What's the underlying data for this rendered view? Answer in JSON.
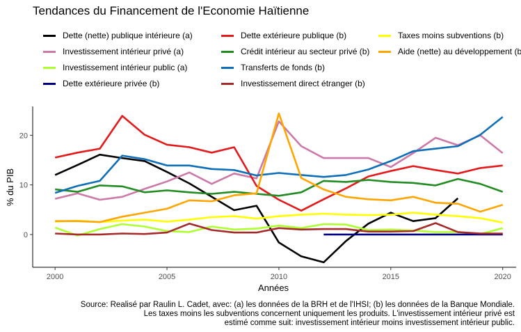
{
  "title": "Tendances du Financement de l'Economie Haïtienne",
  "source_lines": [
    "Source: Realisé par Raulin L. Cadet, avec: (a) les données de la BRH et de l'IHSI; (b) les données de la Banque Mondiale.",
    "Les taxes moins les subventions concernent uniquement les produits. L'investissement intérieur privé est",
    "estimé comme suit: investissement intérieur moins investissement intérieur public."
  ],
  "chart_data": {
    "type": "line",
    "title": "Tendances du Financement de l'Economie Haïtienne",
    "xlabel": "Années",
    "ylabel": "% du PIB",
    "xlim": [
      1999.0,
      2020.6
    ],
    "ylim": [
      -6.6,
      25.8
    ],
    "x_ticks": [
      2000,
      2005,
      2010,
      2015,
      2020
    ],
    "y_ticks": [
      0,
      10,
      20
    ],
    "grid": false,
    "legend_position": "top",
    "series": [
      {
        "name": "Dette (nette) publique intérieure (a)",
        "color": "#000000",
        "x": [
          2000,
          2001,
          2002,
          2003,
          2004,
          2005,
          2006,
          2007,
          2008,
          2009,
          2010,
          2011,
          2012,
          2013,
          2014,
          2015,
          2016,
          2017,
          2018
        ],
        "values": [
          12.0,
          14.0,
          16.1,
          15.4,
          14.8,
          12.6,
          10.3,
          7.6,
          4.9,
          5.8,
          -1.6,
          -4.4,
          -5.6,
          -1.3,
          2.2,
          4.4,
          2.7,
          3.3,
          7.3
        ]
      },
      {
        "name": "Investissement intérieur privé (a)",
        "color": "#cc79a7",
        "x": [
          2000,
          2001,
          2002,
          2003,
          2004,
          2005,
          2006,
          2007,
          2008,
          2009,
          2010,
          2011,
          2012,
          2013,
          2014,
          2015,
          2016,
          2017,
          2018,
          2019,
          2020
        ],
        "values": [
          7.2,
          8.3,
          7.0,
          7.6,
          9.2,
          10.7,
          12.5,
          10.2,
          12.3,
          11.3,
          22.8,
          17.8,
          15.4,
          15.4,
          15.4,
          13.6,
          16.4,
          19.5,
          18.0,
          20.0,
          16.4
        ]
      },
      {
        "name": "Investissement intérieur public (a)",
        "color": "#adff2f",
        "x": [
          2000,
          2001,
          2002,
          2003,
          2004,
          2005,
          2006,
          2007,
          2008,
          2009,
          2010,
          2011,
          2012,
          2013,
          2014,
          2015,
          2016,
          2017,
          2018,
          2019,
          2020
        ],
        "values": [
          1.4,
          -0.2,
          1.1,
          2.1,
          1.6,
          0.7,
          0.5,
          1.6,
          1.0,
          1.2,
          1.8,
          1.3,
          2.1,
          2.0,
          0.9,
          1.0,
          0.8,
          0.5,
          0.5,
          0.1,
          1.3
        ]
      },
      {
        "name": "Dette extérieure privée (b)",
        "color": "#000080",
        "x": [
          2012,
          2013,
          2014,
          2015,
          2016,
          2017,
          2018,
          2019,
          2020
        ],
        "values": [
          0.0,
          0.0,
          0.0,
          0.0,
          0.0,
          0.0,
          0.0,
          0.0,
          0.0
        ]
      },
      {
        "name": "Dette extérieure publique (b)",
        "color": "#e31a1c",
        "x": [
          2000,
          2001,
          2002,
          2003,
          2004,
          2005,
          2006,
          2007,
          2008,
          2009,
          2010,
          2011,
          2012,
          2013,
          2014,
          2015,
          2016,
          2017,
          2018,
          2019,
          2020
        ],
        "values": [
          15.5,
          16.5,
          17.3,
          23.9,
          20.1,
          18.1,
          17.6,
          16.5,
          17.6,
          9.8,
          7.0,
          4.8,
          7.1,
          9.3,
          11.7,
          12.8,
          13.8,
          13.0,
          12.3,
          13.4,
          13.9
        ]
      },
      {
        "name": "Crédit intérieur au secteur privé (b)",
        "color": "#228b22",
        "x": [
          2000,
          2001,
          2002,
          2003,
          2004,
          2005,
          2006,
          2007,
          2008,
          2009,
          2010,
          2011,
          2012,
          2013,
          2014,
          2015,
          2016,
          2017,
          2018,
          2019,
          2020
        ],
        "values": [
          9.1,
          8.6,
          9.9,
          9.7,
          8.5,
          8.9,
          8.5,
          8.2,
          8.6,
          8.2,
          7.8,
          8.5,
          10.8,
          10.6,
          11.0,
          10.6,
          10.4,
          9.9,
          11.2,
          10.2,
          8.6
        ]
      },
      {
        "name": "Transferts de fonds (b)",
        "color": "#0e6eb8",
        "x": [
          2000,
          2001,
          2002,
          2003,
          2004,
          2005,
          2006,
          2007,
          2008,
          2009,
          2010,
          2011,
          2012,
          2013,
          2014,
          2015,
          2016,
          2017,
          2018,
          2019,
          2020
        ],
        "values": [
          8.4,
          9.8,
          10.8,
          15.9,
          15.2,
          13.9,
          13.9,
          13.2,
          13.0,
          11.9,
          12.4,
          12.0,
          11.6,
          12.0,
          13.1,
          14.8,
          16.8,
          17.3,
          17.8,
          20.1,
          23.7
        ]
      },
      {
        "name": "Investissement direct étranger (b)",
        "color": "#a52a2a",
        "x": [
          2000,
          2001,
          2002,
          2003,
          2004,
          2005,
          2006,
          2007,
          2008,
          2009,
          2010,
          2011,
          2012,
          2013,
          2014,
          2015,
          2016,
          2017,
          2018,
          2019,
          2020
        ],
        "values": [
          0.2,
          0.0,
          0.0,
          0.2,
          0.1,
          0.4,
          2.2,
          0.9,
          0.4,
          0.4,
          1.3,
          1.0,
          1.1,
          1.1,
          0.6,
          0.6,
          0.7,
          2.3,
          0.5,
          0.2,
          0.2
        ]
      },
      {
        "name": "Taxes moins subventions (b)",
        "color": "#ffff00",
        "x": [
          2000,
          2001,
          2002,
          2003,
          2004,
          2005,
          2006,
          2007,
          2008,
          2009,
          2010,
          2011,
          2012,
          2013,
          2014,
          2015,
          2016,
          2017,
          2018,
          2019,
          2020
        ],
        "values": [
          2.6,
          2.8,
          2.5,
          2.8,
          3.0,
          2.6,
          3.0,
          3.5,
          3.7,
          3.2,
          3.7,
          4.0,
          4.2,
          4.0,
          3.9,
          4.0,
          4.4,
          4.0,
          3.7,
          3.3,
          2.4
        ]
      },
      {
        "name": "Aide (nette) au développement (b)",
        "color": "#ffa500",
        "x": [
          2000,
          2001,
          2002,
          2003,
          2004,
          2005,
          2006,
          2007,
          2008,
          2009,
          2010,
          2011,
          2012,
          2013,
          2014,
          2015,
          2016,
          2017,
          2018,
          2019,
          2020
        ],
        "values": [
          2.7,
          2.7,
          2.5,
          3.6,
          4.4,
          5.2,
          6.9,
          6.7,
          7.9,
          8.3,
          24.4,
          11.4,
          9.1,
          7.6,
          7.1,
          6.9,
          7.6,
          6.4,
          6.2,
          4.6,
          6.0
        ]
      }
    ]
  }
}
